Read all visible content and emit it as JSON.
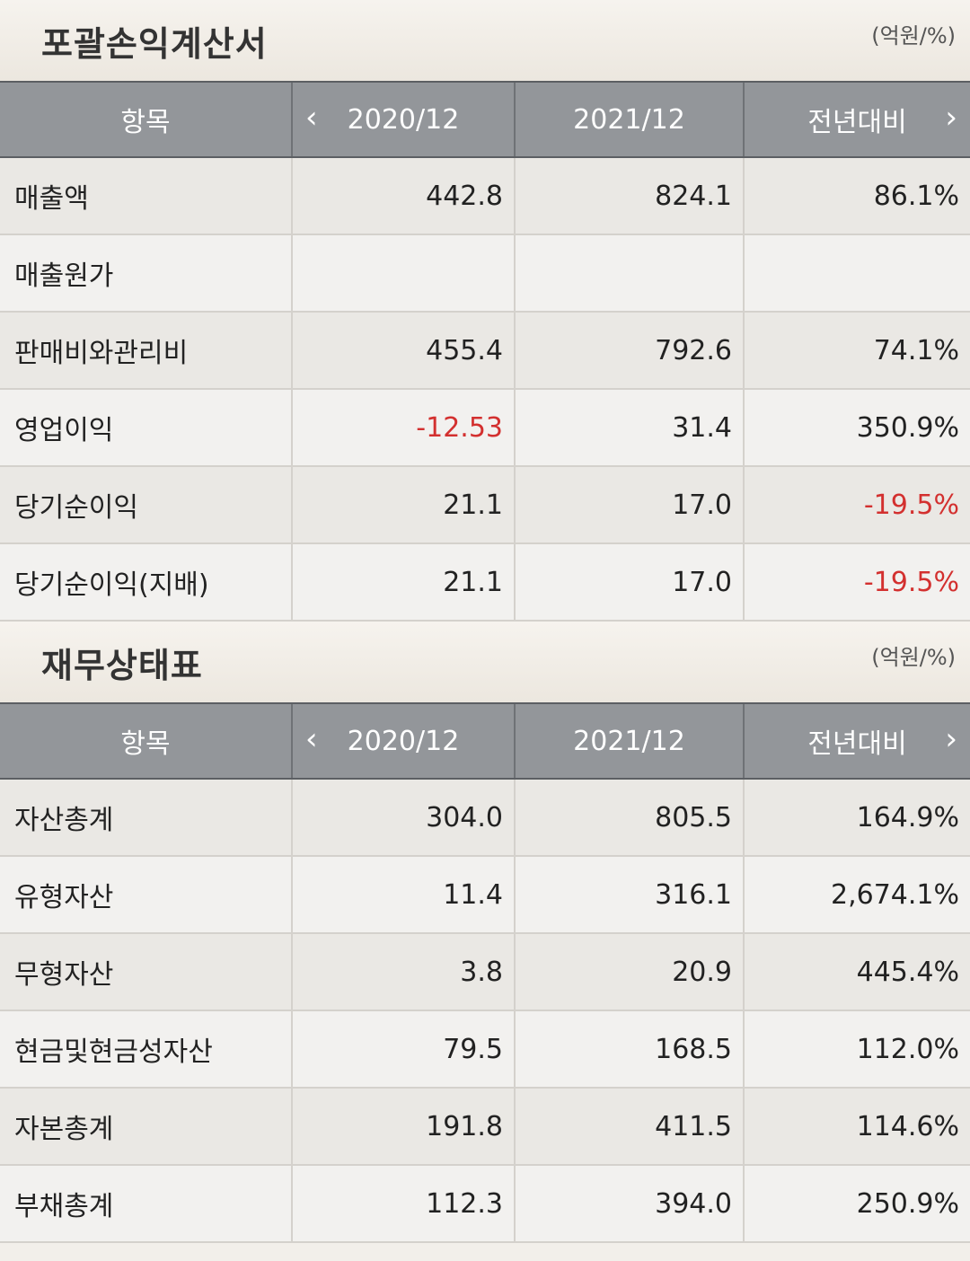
{
  "sections": [
    {
      "title": "포괄손익계산서",
      "unit": "(억원/%)",
      "headers": [
        "항목",
        "2020/12",
        "2021/12",
        "전년대비"
      ],
      "rows": [
        [
          "매출액",
          "442.8",
          "824.1",
          "86.1%"
        ],
        [
          "매출원가",
          "",
          "",
          ""
        ],
        [
          "판매비와관리비",
          "455.4",
          "792.6",
          "74.1%"
        ],
        [
          "영업이익",
          "-12.53",
          "31.4",
          "350.9%"
        ],
        [
          "당기순이익",
          "21.1",
          "17.0",
          "-19.5%"
        ],
        [
          "당기순이익(지배)",
          "21.1",
          "17.0",
          "-19.5%"
        ]
      ]
    },
    {
      "title": "재무상태표",
      "unit": "(억원/%)",
      "headers": [
        "항목",
        "2020/12",
        "2021/12",
        "전년대비"
      ],
      "rows": [
        [
          "자산총계",
          "304.0",
          "805.5",
          "164.9%"
        ],
        [
          "유형자산",
          "11.4",
          "316.1",
          "2,674.1%"
        ],
        [
          "무형자산",
          "3.8",
          "20.9",
          "445.4%"
        ],
        [
          "현금및현금성자산",
          "79.5",
          "168.5",
          "112.0%"
        ],
        [
          "자본총계",
          "191.8",
          "411.5",
          "114.6%"
        ],
        [
          "부채총계",
          "112.3",
          "394.0",
          "250.9%"
        ]
      ]
    }
  ],
  "nav": {
    "prev": "‹",
    "next": "›"
  },
  "colors": {
    "negative": "#d3302f",
    "header_bg": "#93969a"
  }
}
